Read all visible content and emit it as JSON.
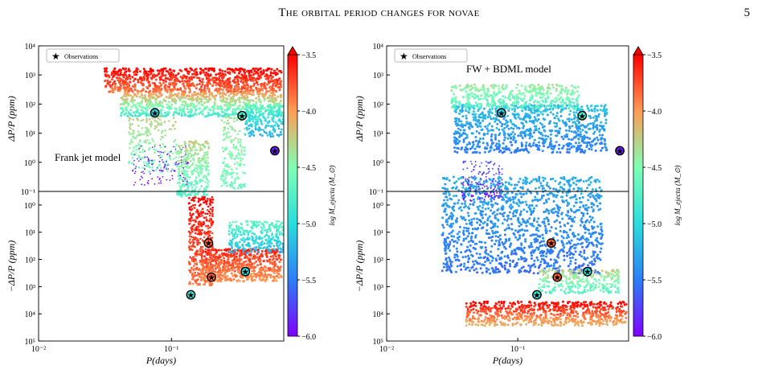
{
  "page": {
    "running_title": "The orbital period changes for novae",
    "page_number": "5"
  },
  "chart_data": [
    {
      "type": "scatter",
      "model_label": "Frank jet model",
      "legend": {
        "entries": [
          "Observations"
        ],
        "placement": "top-left"
      },
      "xlabel": "P(days)",
      "ylabel_top": "ΔP/P (ppm)",
      "ylabel_bottom": "−ΔP/P (ppm)",
      "x_scale": "log",
      "xlim": [
        0.01,
        0.7
      ],
      "x_ticks": [
        "10⁻²",
        "10⁻¹"
      ],
      "y_top_ticks": [
        "10⁴",
        "10³",
        "10²",
        "10¹",
        "10⁰",
        "10⁻¹"
      ],
      "y_bottom_ticks": [
        "10⁰",
        "10¹",
        "10²",
        "10³",
        "10⁴",
        "10⁵"
      ],
      "colorbar": {
        "label": "log M_ejecta (M_⊙)",
        "range": [
          -6.0,
          -3.5
        ],
        "ticks": [
          "−3.5",
          "−4.0",
          "−4.5",
          "−5.0",
          "−5.5",
          "−6.0"
        ]
      },
      "observations": [
        {
          "P": 0.075,
          "dP_over_P": 50,
          "sign": "positive",
          "log_Mej": -5.1
        },
        {
          "P": 0.34,
          "dP_over_P": 40,
          "sign": "positive",
          "log_Mej": -4.8
        },
        {
          "P": 0.6,
          "dP_over_P": 2.5,
          "sign": "positive",
          "log_Mej": -5.9
        },
        {
          "P": 0.19,
          "dP_over_P": 25,
          "sign": "negative",
          "log_Mej": -3.8
        },
        {
          "P": 0.36,
          "dP_over_P": 280,
          "sign": "negative",
          "log_Mej": -5.0
        },
        {
          "P": 0.2,
          "dP_over_P": 450,
          "sign": "negative",
          "log_Mej": -3.8
        },
        {
          "P": 0.14,
          "dP_over_P": 2000,
          "sign": "negative",
          "log_Mej": -4.9
        }
      ]
    },
    {
      "type": "scatter",
      "model_label": "FW + BDML model",
      "legend": {
        "entries": [
          "Observations"
        ],
        "placement": "top-left"
      },
      "xlabel": "P(days)",
      "ylabel_top": "ΔP/P (ppm)",
      "ylabel_bottom": "−ΔP/P (ppm)",
      "x_scale": "log",
      "xlim": [
        0.01,
        0.7
      ],
      "x_ticks": [
        "10⁻²",
        "10⁻¹"
      ],
      "y_top_ticks": [
        "10⁴",
        "10³",
        "10²",
        "10¹",
        "10⁰",
        "10⁻¹"
      ],
      "y_bottom_ticks": [
        "10⁰",
        "10¹",
        "10²",
        "10³",
        "10⁴",
        "10⁵"
      ],
      "colorbar": {
        "label": "log M_ejecta (M_⊙)",
        "range": [
          -6.0,
          -3.5
        ],
        "ticks": [
          "−3.5",
          "−4.0",
          "−4.5",
          "−5.0",
          "−5.5",
          "−6.0"
        ]
      },
      "observations": [
        {
          "P": 0.075,
          "dP_over_P": 50,
          "sign": "positive",
          "log_Mej": -5.1
        },
        {
          "P": 0.31,
          "dP_over_P": 40,
          "sign": "positive",
          "log_Mej": -4.8
        },
        {
          "P": 0.6,
          "dP_over_P": 2.5,
          "sign": "positive",
          "log_Mej": -5.9
        },
        {
          "P": 0.18,
          "dP_over_P": 25,
          "sign": "negative",
          "log_Mej": -3.8
        },
        {
          "P": 0.34,
          "dP_over_P": 280,
          "sign": "negative",
          "log_Mej": -5.0
        },
        {
          "P": 0.2,
          "dP_over_P": 450,
          "sign": "negative",
          "log_Mej": -3.8
        },
        {
          "P": 0.14,
          "dP_over_P": 2000,
          "sign": "negative",
          "log_Mej": -4.9
        }
      ]
    }
  ]
}
